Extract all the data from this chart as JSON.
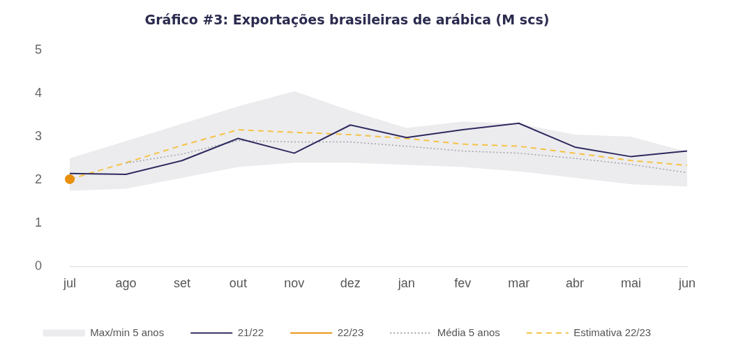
{
  "chart_data": {
    "type": "line",
    "title": "Gráfico #3: Exportações brasileiras de arábica (M scs)",
    "categories": [
      "jul",
      "ago",
      "set",
      "out",
      "nov",
      "dez",
      "jan",
      "fev",
      "mar",
      "abr",
      "mai",
      "jun"
    ],
    "ylim": [
      0,
      5
    ],
    "yticks": [
      0,
      1,
      2,
      3,
      4,
      5
    ],
    "grid": false,
    "legend": "bottom",
    "series": [
      {
        "name": "Max/min 5 anos",
        "type": "area",
        "color": "#ececef",
        "values": [
          null,
          null,
          null,
          null,
          null,
          null,
          null,
          null,
          null,
          null,
          null,
          null
        ],
        "lower": [
          1.75,
          1.8,
          2.05,
          2.3,
          2.4,
          2.4,
          2.35,
          2.3,
          2.2,
          2.05,
          1.9,
          1.85
        ],
        "upper": [
          2.5,
          2.9,
          3.3,
          3.7,
          4.05,
          3.6,
          3.2,
          3.35,
          3.3,
          3.05,
          3.0,
          2.65
        ]
      },
      {
        "name": "21/22",
        "type": "line",
        "color": "#2e2a5e",
        "line_style": "solid",
        "marker": "none",
        "values": [
          2.15,
          2.13,
          2.45,
          2.96,
          2.62,
          3.27,
          2.98,
          3.16,
          3.31,
          2.76,
          2.54,
          2.67
        ]
      },
      {
        "name": "22/23",
        "type": "line",
        "color": "#e8900c",
        "line_style": "solid",
        "marker": "circle",
        "values": [
          2.02,
          null,
          null,
          null,
          null,
          null,
          null,
          null,
          null,
          null,
          null,
          null
        ]
      },
      {
        "name": "Média 5 anos",
        "type": "line",
        "color": "#a0a0aa",
        "line_style": "dotted",
        "marker": "none",
        "values": [
          null,
          2.39,
          2.6,
          2.91,
          2.88,
          2.88,
          2.78,
          2.67,
          2.62,
          2.5,
          2.36,
          2.17
        ]
      },
      {
        "name": "Estimativa 22/23",
        "type": "line",
        "color": "#f5c242",
        "line_style": "dashed",
        "marker": "none",
        "values": [
          2.02,
          2.4,
          2.8,
          3.16,
          3.1,
          3.05,
          2.96,
          2.83,
          2.78,
          2.62,
          2.45,
          2.34
        ]
      }
    ]
  }
}
